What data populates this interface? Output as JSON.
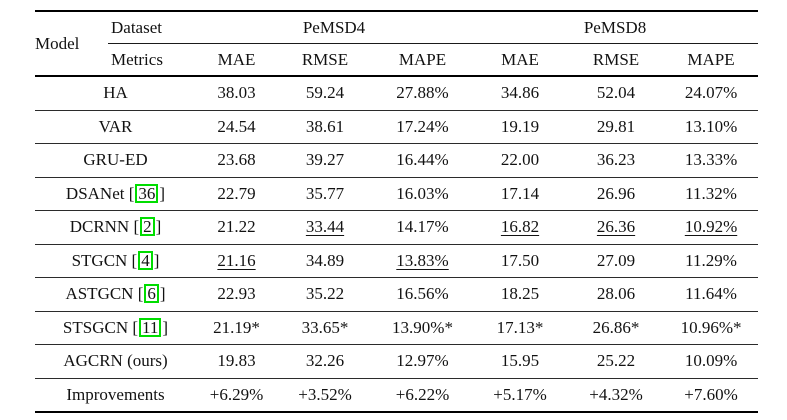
{
  "colors": {
    "citation_box_border": "#00dd00",
    "text": "#121212",
    "rule": "#000000",
    "background": "#ffffff"
  },
  "header": {
    "model_label": "Model",
    "dataset_label": "Dataset",
    "metrics_label": "Metrics",
    "datasets": [
      "PeMSD4",
      "PeMSD8"
    ],
    "metrics": [
      "MAE",
      "RMSE",
      "MAPE",
      "MAE",
      "RMSE",
      "MAPE"
    ]
  },
  "rows": [
    {
      "model": "HA",
      "cite": "",
      "values": [
        "38.03",
        "59.24",
        "27.88%",
        "34.86",
        "52.04",
        "24.07%"
      ],
      "underline": []
    },
    {
      "model": "VAR",
      "cite": "",
      "values": [
        "24.54",
        "38.61",
        "17.24%",
        "19.19",
        "29.81",
        "13.10%"
      ],
      "underline": []
    },
    {
      "model": "GRU-ED",
      "cite": "",
      "values": [
        "23.68",
        "39.27",
        "16.44%",
        "22.00",
        "36.23",
        "13.33%"
      ],
      "underline": []
    },
    {
      "model": "DSANet",
      "cite": "36",
      "values": [
        "22.79",
        "35.77",
        "16.03%",
        "17.14",
        "26.96",
        "11.32%"
      ],
      "underline": []
    },
    {
      "model": "DCRNN",
      "cite": "2",
      "values": [
        "21.22",
        "33.44",
        "14.17%",
        "16.82",
        "26.36",
        "10.92%"
      ],
      "underline": [
        1,
        3,
        4,
        5
      ]
    },
    {
      "model": "STGCN",
      "cite": "4",
      "values": [
        "21.16",
        "34.89",
        "13.83%",
        "17.50",
        "27.09",
        "11.29%"
      ],
      "underline": [
        0,
        2
      ]
    },
    {
      "model": "ASTGCN",
      "cite": "6",
      "values": [
        "22.93",
        "35.22",
        "16.56%",
        "18.25",
        "28.06",
        "11.64%"
      ],
      "underline": []
    },
    {
      "model": "STSGCN",
      "cite": "11",
      "values": [
        "21.19*",
        "33.65*",
        "13.90%*",
        "17.13*",
        "26.86*",
        "10.96%*"
      ],
      "underline": []
    },
    {
      "model": "AGCRN (ours)",
      "cite": "",
      "values": [
        "19.83",
        "32.26",
        "12.97%",
        "15.95",
        "25.22",
        "10.09%"
      ],
      "underline": []
    },
    {
      "model": "Improvements",
      "cite": "",
      "values": [
        "+6.29%",
        "+3.52%",
        "+6.22%",
        "+5.17%",
        "+4.32%",
        "+7.60%"
      ],
      "underline": []
    }
  ]
}
